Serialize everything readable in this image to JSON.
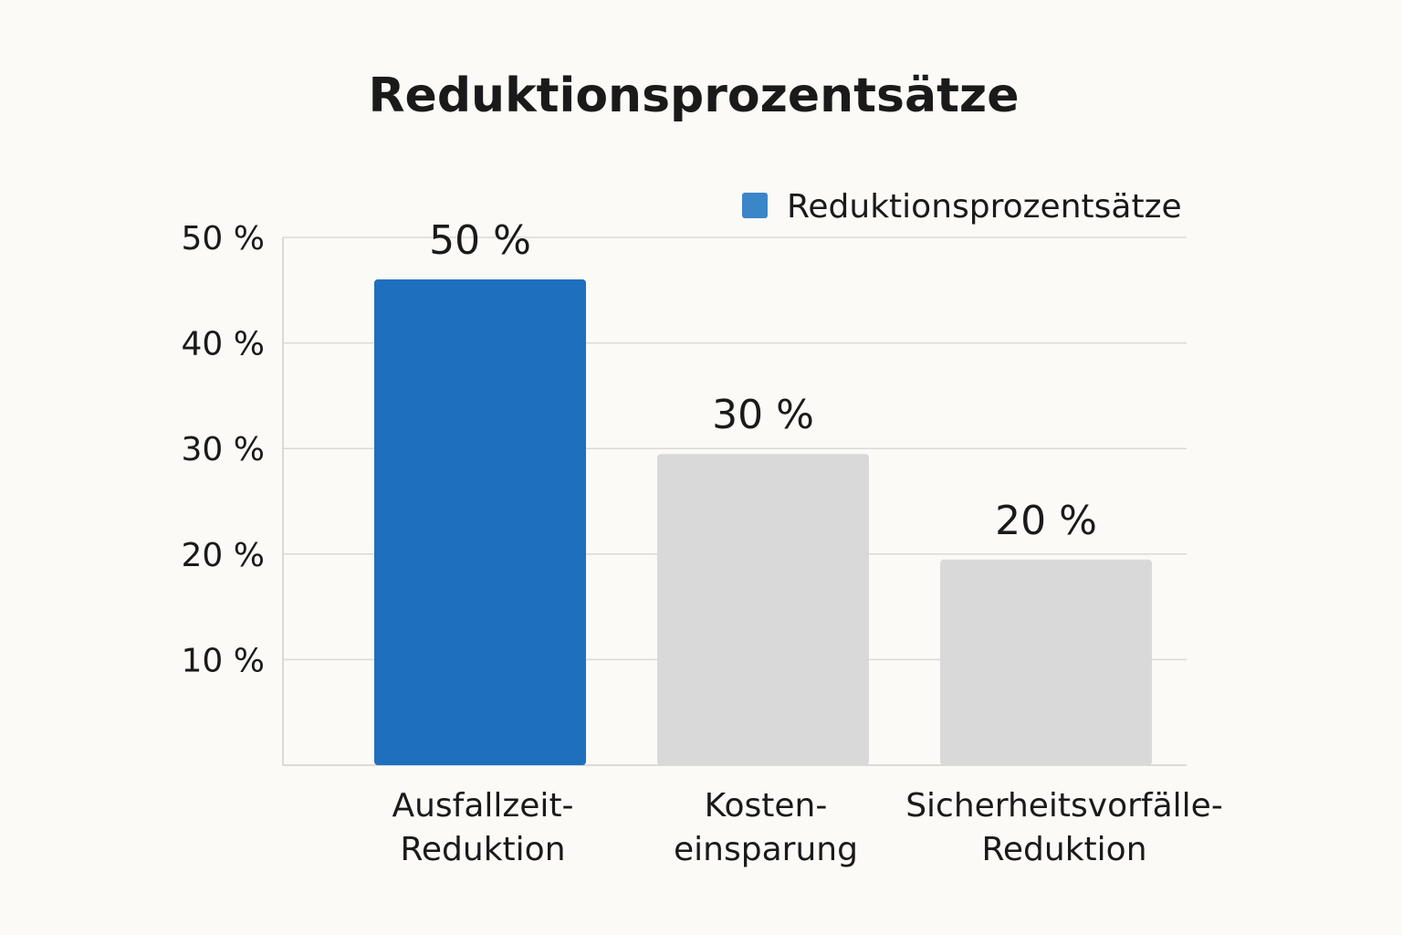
{
  "chart_data": {
    "type": "bar",
    "title": "Reduktionsprozentsätze",
    "xlabel": "",
    "ylabel": "",
    "ylim": [
      0,
      50
    ],
    "yticks": [
      10,
      20,
      30,
      40,
      50
    ],
    "ytick_labels": [
      "10 %",
      "20 %",
      "30 %",
      "40 %",
      "50 %"
    ],
    "grid": true,
    "legend_position": "top-right",
    "legend": [
      "Reduktionsprozentsätze"
    ],
    "categories": [
      [
        "Ausfallzeit-",
        "Reduktion"
      ],
      [
        "Kosten-",
        "einsparung"
      ],
      [
        "Sicherheitsvorfälle-",
        "Reduktion"
      ]
    ],
    "series": [
      {
        "name": "Reduktionsprozentsätze",
        "values": [
          50,
          30,
          20
        ],
        "data_labels": [
          "50 %",
          "30 %",
          "20 %"
        ]
      }
    ],
    "colors": {
      "highlight": "#1f6fbf",
      "muted": "#d9d9d9",
      "legend_swatch": "#3a86c8",
      "background": "#fbfaf6"
    }
  }
}
